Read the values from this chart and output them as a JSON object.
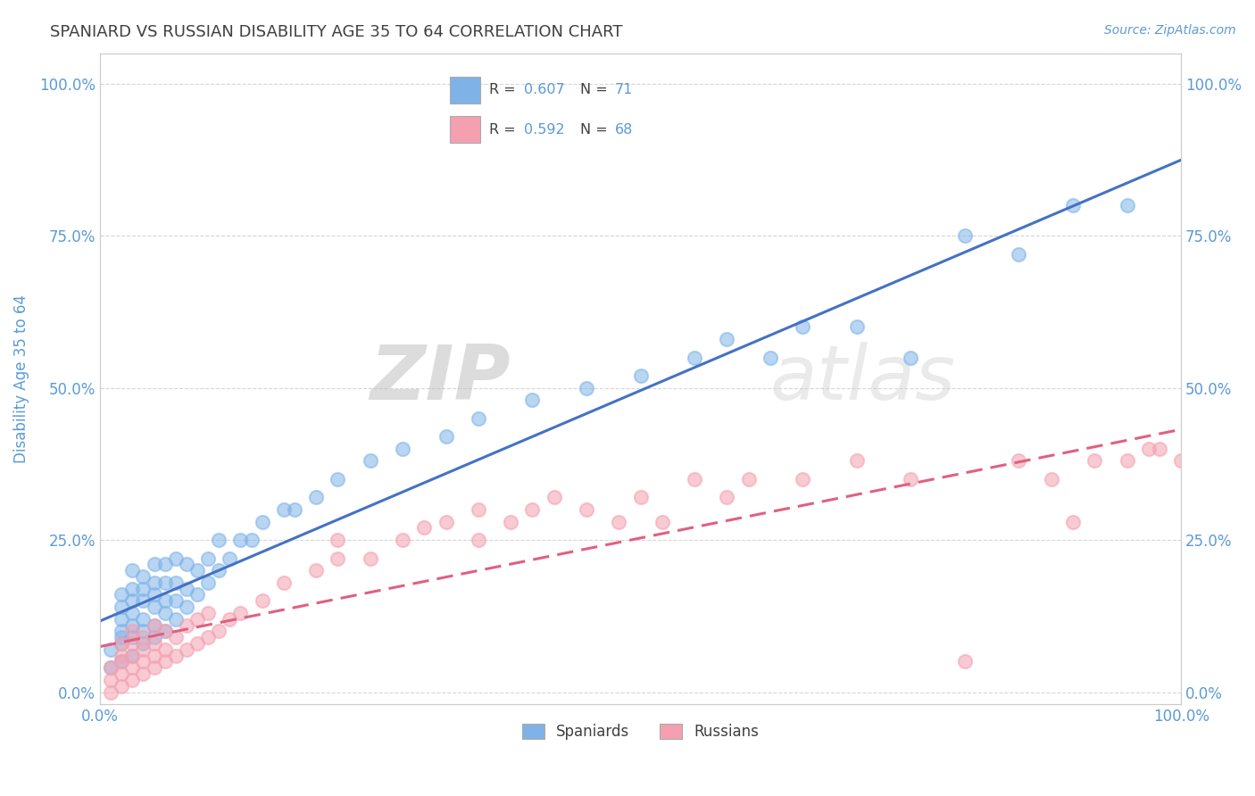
{
  "title": "SPANIARD VS RUSSIAN DISABILITY AGE 35 TO 64 CORRELATION CHART",
  "source_text": "Source: ZipAtlas.com",
  "ylabel": "Disability Age 35 to 64",
  "xlim": [
    0,
    1.0
  ],
  "ylim": [
    -0.02,
    1.05
  ],
  "xtick_labels": [
    "0.0%",
    "100.0%"
  ],
  "ytick_labels": [
    "0.0%",
    "25.0%",
    "50.0%",
    "75.0%",
    "100.0%"
  ],
  "ytick_values": [
    0.0,
    0.25,
    0.5,
    0.75,
    1.0
  ],
  "spaniard_color": "#7fb3e8",
  "russian_color": "#f4a0b0",
  "spaniard_line_color": "#4472c4",
  "russian_line_color": "#e06080",
  "legend_r_spaniard": "0.607",
  "legend_n_spaniard": "71",
  "legend_r_russian": "0.592",
  "legend_n_russian": "68",
  "watermark_zip": "ZIP",
  "watermark_atlas": "atlas",
  "background_color": "#ffffff",
  "grid_color": "#cccccc",
  "title_color": "#404040",
  "axis_label_color": "#5b9bd5",
  "legend_text_color": "#404040",
  "legend_value_color": "#5b9bd5",
  "spaniard_x": [
    0.01,
    0.01,
    0.02,
    0.02,
    0.02,
    0.02,
    0.02,
    0.02,
    0.02,
    0.03,
    0.03,
    0.03,
    0.03,
    0.03,
    0.03,
    0.03,
    0.04,
    0.04,
    0.04,
    0.04,
    0.04,
    0.04,
    0.05,
    0.05,
    0.05,
    0.05,
    0.05,
    0.05,
    0.06,
    0.06,
    0.06,
    0.06,
    0.06,
    0.07,
    0.07,
    0.07,
    0.07,
    0.08,
    0.08,
    0.08,
    0.09,
    0.09,
    0.1,
    0.1,
    0.11,
    0.11,
    0.12,
    0.13,
    0.14,
    0.15,
    0.17,
    0.18,
    0.2,
    0.22,
    0.25,
    0.28,
    0.32,
    0.35,
    0.4,
    0.45,
    0.5,
    0.55,
    0.58,
    0.62,
    0.65,
    0.7,
    0.75,
    0.8,
    0.85,
    0.9,
    0.95
  ],
  "spaniard_y": [
    0.04,
    0.07,
    0.05,
    0.08,
    0.09,
    0.1,
    0.12,
    0.14,
    0.16,
    0.06,
    0.09,
    0.11,
    0.13,
    0.15,
    0.17,
    0.2,
    0.08,
    0.1,
    0.12,
    0.15,
    0.17,
    0.19,
    0.09,
    0.11,
    0.14,
    0.16,
    0.18,
    0.21,
    0.1,
    0.13,
    0.15,
    0.18,
    0.21,
    0.12,
    0.15,
    0.18,
    0.22,
    0.14,
    0.17,
    0.21,
    0.16,
    0.2,
    0.18,
    0.22,
    0.2,
    0.25,
    0.22,
    0.25,
    0.25,
    0.28,
    0.3,
    0.3,
    0.32,
    0.35,
    0.38,
    0.4,
    0.42,
    0.45,
    0.48,
    0.5,
    0.52,
    0.55,
    0.58,
    0.55,
    0.6,
    0.6,
    0.55,
    0.75,
    0.72,
    0.8,
    0.8
  ],
  "russian_x": [
    0.01,
    0.01,
    0.01,
    0.02,
    0.02,
    0.02,
    0.02,
    0.02,
    0.03,
    0.03,
    0.03,
    0.03,
    0.03,
    0.04,
    0.04,
    0.04,
    0.04,
    0.05,
    0.05,
    0.05,
    0.05,
    0.06,
    0.06,
    0.06,
    0.07,
    0.07,
    0.08,
    0.08,
    0.09,
    0.09,
    0.1,
    0.1,
    0.11,
    0.12,
    0.13,
    0.15,
    0.17,
    0.2,
    0.22,
    0.22,
    0.25,
    0.28,
    0.3,
    0.32,
    0.35,
    0.35,
    0.38,
    0.4,
    0.42,
    0.45,
    0.48,
    0.5,
    0.52,
    0.55,
    0.58,
    0.6,
    0.65,
    0.7,
    0.75,
    0.8,
    0.85,
    0.88,
    0.9,
    0.92,
    0.95,
    0.97,
    0.98,
    1.0
  ],
  "russian_y": [
    0.0,
    0.02,
    0.04,
    0.01,
    0.03,
    0.05,
    0.06,
    0.08,
    0.02,
    0.04,
    0.06,
    0.08,
    0.1,
    0.03,
    0.05,
    0.07,
    0.09,
    0.04,
    0.06,
    0.08,
    0.11,
    0.05,
    0.07,
    0.1,
    0.06,
    0.09,
    0.07,
    0.11,
    0.08,
    0.12,
    0.09,
    0.13,
    0.1,
    0.12,
    0.13,
    0.15,
    0.18,
    0.2,
    0.22,
    0.25,
    0.22,
    0.25,
    0.27,
    0.28,
    0.25,
    0.3,
    0.28,
    0.3,
    0.32,
    0.3,
    0.28,
    0.32,
    0.28,
    0.35,
    0.32,
    0.35,
    0.35,
    0.38,
    0.35,
    0.05,
    0.38,
    0.35,
    0.28,
    0.38,
    0.38,
    0.4,
    0.4,
    0.38
  ]
}
